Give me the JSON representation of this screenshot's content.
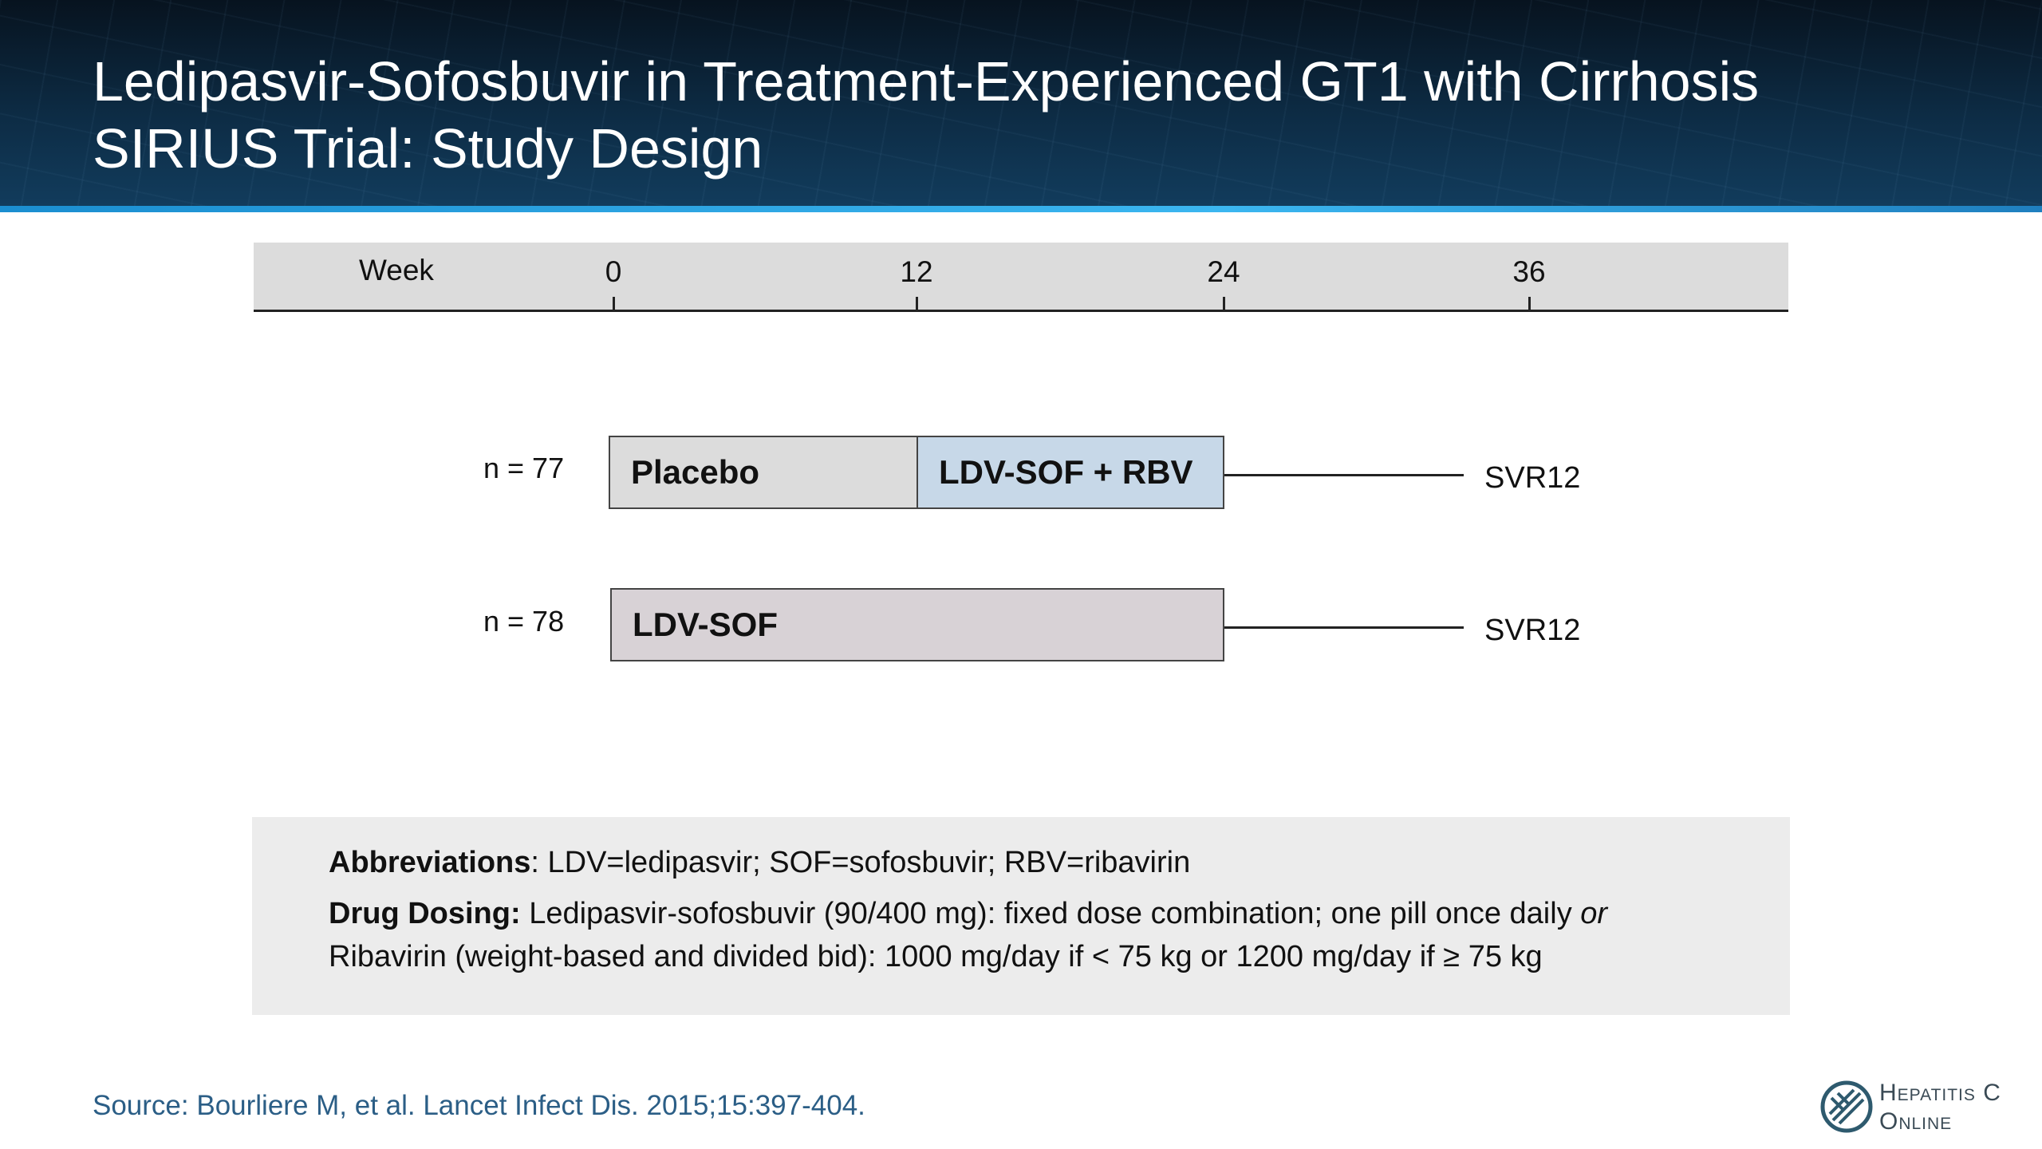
{
  "title": {
    "line1": "Ledipasvir-Sofosbuvir in Treatment-Experienced GT1 with Cirrhosis",
    "line2": "SIRIUS Trial: Study Design"
  },
  "timeline": {
    "label": "Week",
    "ticks": [
      "0",
      "12",
      "24",
      "36"
    ]
  },
  "arms": [
    {
      "n_label": "n = 77",
      "segments": [
        "Placebo",
        "LDV-SOF + RBV"
      ],
      "outcome": "SVR12"
    },
    {
      "n_label": "n = 78",
      "segments": [
        "LDV-SOF"
      ],
      "outcome": "SVR12"
    }
  ],
  "notes": {
    "abbrev_label": "Abbreviations",
    "abbrev_text": ": LDV=ledipasvir; SOF=sofosbuvir; RBV=ribavirin",
    "dosing_label": "Drug Dosing:",
    "dosing_text": " Ledipasvir-sofosbuvir (90/400 mg): fixed dose combination; one pill once daily ",
    "dosing_or": "or",
    "dosing_text2": "Ribavirin (weight-based and divided bid): 1000 mg/day if < 75 kg or 1200 mg/day if ≥ 75 kg"
  },
  "source": "Source: Bourliere M, et al. Lancet Infect Dis. 2015;15:397-404.",
  "logo": {
    "line1": "Hepatitis C",
    "line2": "Online",
    "icon": "hepatitis-c-online-logo-icon"
  }
}
